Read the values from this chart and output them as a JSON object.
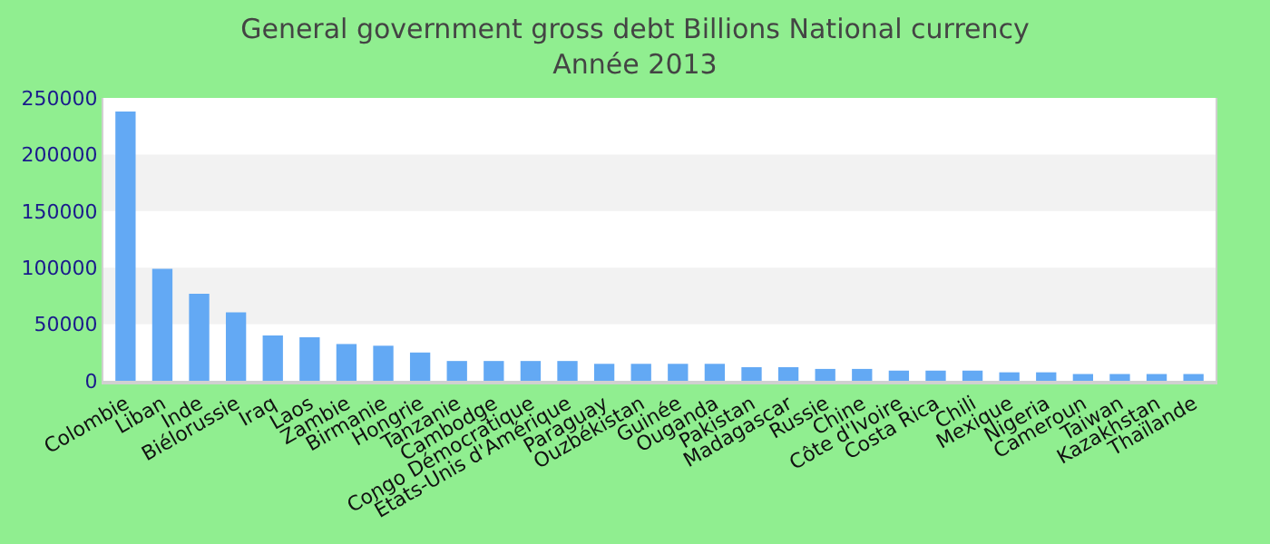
{
  "chart_data": {
    "type": "bar",
    "title": "General government gross debt Billions National currency",
    "subtitle": "Année 2013",
    "categories": [
      "Colombie",
      "Liban",
      "Inde",
      "Biélorussie",
      "Iraq",
      "Laos",
      "Zambie",
      "Birmanie",
      "Hongrie",
      "Tanzanie",
      "Cambodge",
      "Congo Démocratique",
      "États-Unis d'Amérique",
      "Paraguay",
      "Ouzbékistan",
      "Guinée",
      "Ouganda",
      "Pakistan",
      "Madagascar",
      "Russie",
      "Chine",
      "Côte d'Ivoire",
      "Costa Rica",
      "Chili",
      "Mexique",
      "Nigeria",
      "Cameroun",
      "Taiwan",
      "Kazakhstan",
      "Thaïlande"
    ],
    "values": [
      238000,
      99000,
      77000,
      60500,
      40000,
      38500,
      32500,
      31000,
      25000,
      17500,
      17500,
      17500,
      17500,
      15000,
      15000,
      15000,
      15000,
      12000,
      12000,
      10500,
      10500,
      9000,
      9000,
      9000,
      7500,
      7500,
      6000,
      6000,
      6000,
      6000
    ],
    "color": "#63a9f4",
    "ylim": [
      0,
      250000
    ],
    "yticks": [
      0,
      50000,
      100000,
      150000,
      200000,
      250000
    ],
    "bands": [
      {
        "axis": "y",
        "from": 50000,
        "to": 100000,
        "color": "#f2f2f2"
      },
      {
        "axis": "y",
        "from": 150000,
        "to": 200000,
        "color": "#f2f2f2"
      }
    ],
    "legend": false
  }
}
